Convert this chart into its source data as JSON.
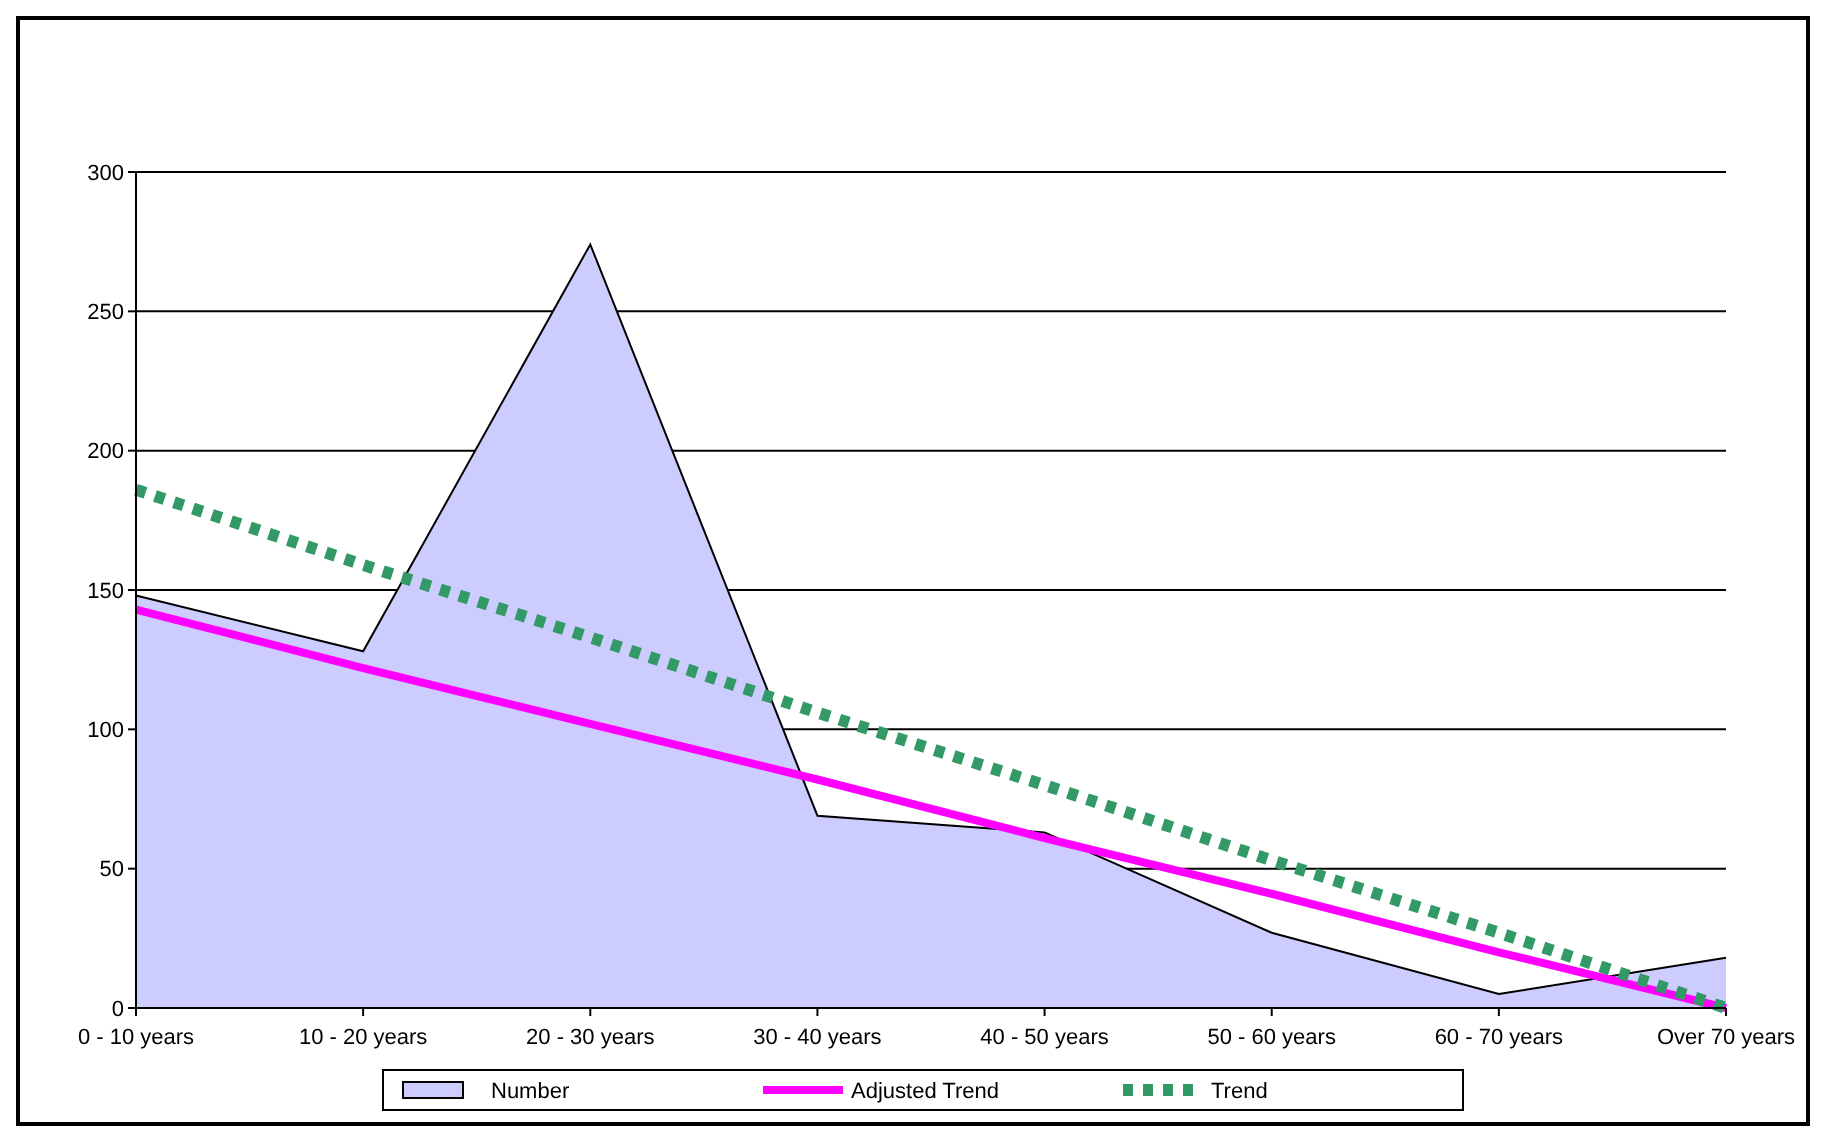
{
  "chart_data": {
    "type": "area",
    "categories": [
      "0 - 10 years",
      "10 - 20 years",
      "20 - 30 years",
      "30 - 40 years",
      "40 - 50 years",
      "50 - 60 years",
      "60 - 70 years",
      "Over 70 years"
    ],
    "series": [
      {
        "name": "Number",
        "color": "#ccccff",
        "values": [
          148,
          128,
          274,
          69,
          63,
          27,
          5,
          18
        ]
      },
      {
        "name": "Adjusted Trend",
        "type": "line",
        "color": "#ff00ff",
        "line_style": "solid",
        "values": [
          143,
          122,
          102,
          82,
          61,
          41,
          20,
          0
        ]
      },
      {
        "name": "Trend",
        "type": "line",
        "color": "#339966",
        "line_style": "dotted",
        "values": [
          186,
          159,
          133,
          106,
          80,
          53,
          27,
          0
        ]
      }
    ],
    "ylim": [
      0,
      300
    ],
    "yticks": [
      0,
      50,
      100,
      150,
      200,
      250,
      300
    ],
    "grid": "y",
    "legend": "bottom",
    "marker": "none"
  }
}
